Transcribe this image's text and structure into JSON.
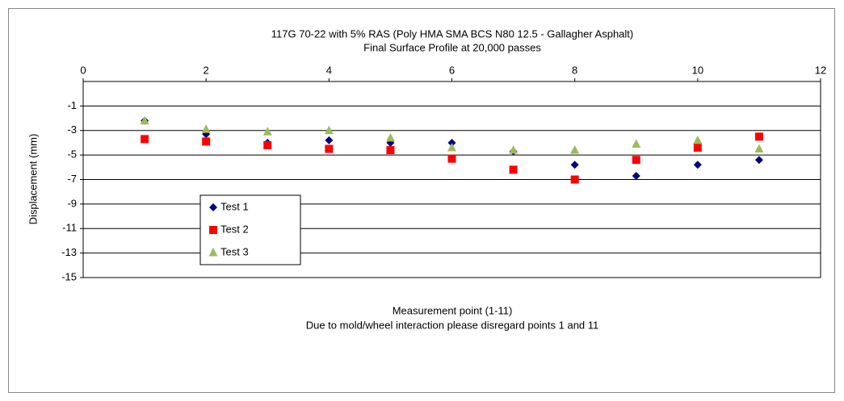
{
  "chart_data": {
    "type": "scatter",
    "title": "117G 70-22 with 5% RAS (Poly HMA SMA BCS N80 12.5 - Gallagher Asphalt)",
    "subtitle": "Final Surface Profile at 20,000 passes",
    "x_label": "Measurement point (1-11)",
    "annotation": "Due to mold/wheel interaction please disregard points 1 and 11",
    "y_label": "Displacement (mm)",
    "x": [
      1,
      2,
      3,
      4,
      5,
      6,
      7,
      8,
      9,
      10,
      11
    ],
    "series": [
      {
        "name": "Test 1",
        "color": "#000080",
        "marker": "diamond",
        "values": [
          -2.2,
          -3.3,
          -4.0,
          -3.8,
          -4.0,
          -4.0,
          -4.7,
          -5.8,
          -6.7,
          -5.8,
          -5.4
        ]
      },
      {
        "name": "Test 2",
        "color": "#ff0000",
        "marker": "square",
        "values": [
          -3.7,
          -3.9,
          -4.2,
          -4.5,
          -4.6,
          -5.3,
          -6.2,
          -7.0,
          -5.4,
          -4.4,
          -3.5
        ]
      },
      {
        "name": "Test 3",
        "color": "#9bbb59",
        "marker": "triangle",
        "values": [
          -2.2,
          -2.9,
          -3.1,
          -3.0,
          -3.6,
          -4.4,
          -4.6,
          -4.6,
          -4.1,
          -3.8,
          -4.5
        ]
      }
    ],
    "xlim": [
      0,
      12
    ],
    "xticks": [
      0,
      2,
      4,
      6,
      8,
      10,
      12
    ],
    "ylim": [
      -15,
      1
    ],
    "yticks": [
      -15,
      -13,
      -11,
      -9,
      -7,
      -5,
      -3,
      -1
    ],
    "grid": true,
    "x_axis_position": "top"
  }
}
